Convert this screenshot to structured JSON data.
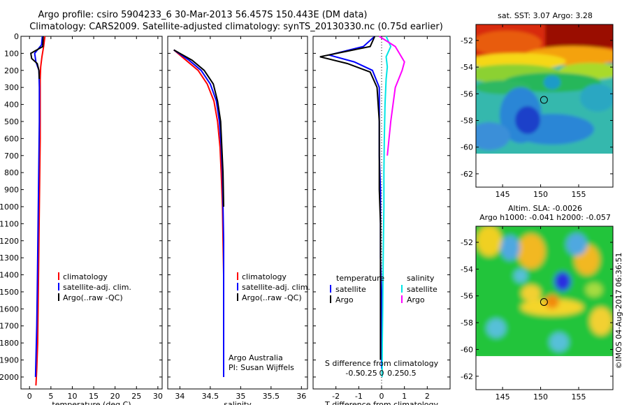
{
  "title": {
    "line1": "Argo profile: csiro 5904233_6 30-Mar-2013 56.457S 150.443E (DM data)",
    "line2": "Climatology: CARS2009. Satellite-adjusted climatology: synTS_20130330.nc (0.75d earlier)"
  },
  "credit": "©IMOS 04-Aug-2017 06:36:51",
  "colors": {
    "climatology": "#ff0000",
    "satellite": "#0000ff",
    "argo": "#000000",
    "sal_satellite": "#00e5e5",
    "sal_argo": "#ff00ff"
  },
  "chart_data": [
    {
      "id": "temperature",
      "type": "line",
      "xlabel": "temperature (deg C)",
      "ylabel": "",
      "xlim": [
        -2,
        31
      ],
      "ylim": [
        0,
        2070
      ],
      "xticks": [
        0,
        5,
        10,
        15,
        20,
        25,
        30
      ],
      "yticks": [
        0,
        100,
        200,
        300,
        400,
        500,
        600,
        700,
        800,
        900,
        1000,
        1100,
        1200,
        1300,
        1400,
        1500,
        1600,
        1700,
        1800,
        1900,
        2000
      ],
      "legend": [
        "climatology",
        "satellite-adj. clim.",
        "Argo(..raw -QC)"
      ],
      "series": [
        {
          "name": "climatology",
          "color": "#ff0000",
          "x": [
            3.6,
            3.3,
            2.9,
            2.6,
            2.5,
            2.5,
            2.5,
            2.4,
            2.3,
            2.2,
            2.1,
            2.0,
            1.9,
            1.7,
            1.5
          ],
          "y": [
            0,
            60,
            120,
            180,
            250,
            400,
            600,
            800,
            1000,
            1200,
            1400,
            1600,
            1800,
            1950,
            2050
          ]
        },
        {
          "name": "satellite-adj. clim.",
          "color": "#0000ff",
          "x": [
            3.0,
            2.8,
            1.2,
            1.5,
            2.2,
            2.3,
            2.3,
            2.2,
            2.1,
            2.0,
            1.9,
            1.8,
            1.7,
            1.5,
            1.4
          ],
          "y": [
            0,
            50,
            100,
            150,
            200,
            300,
            500,
            700,
            900,
            1100,
            1300,
            1500,
            1700,
            1900,
            2000
          ]
        },
        {
          "name": "Argo(..raw -QC)",
          "color": "#000000",
          "x": [
            3.2,
            3.1,
            0.3,
            0.5,
            1.8,
            2.2,
            2.3
          ],
          "y": [
            0,
            60,
            100,
            130,
            160,
            200,
            250
          ]
        }
      ],
      "legend_text": "Argo(..raw -QC)"
    },
    {
      "id": "salinity",
      "type": "line",
      "xlabel": "salinity",
      "ylabel": "",
      "xlim": [
        33.8,
        36.1
      ],
      "ylim": [
        0,
        2070
      ],
      "xticks": [
        34,
        34.5,
        35,
        35.5,
        36
      ],
      "xtick_labels": [
        "34",
        "34.5",
        "35",
        "35.5",
        "36"
      ],
      "legend": [
        "climatology",
        "satellite-adj. clim.",
        "Argo(..raw -QC)"
      ],
      "annotation": [
        "Argo Australia",
        "PI: Susan Wijffels"
      ],
      "series": [
        {
          "name": "climatology",
          "color": "#ff0000",
          "x": [
            33.9,
            34.1,
            34.3,
            34.45,
            34.56,
            34.62,
            34.66,
            34.68,
            34.7,
            34.71,
            34.72,
            34.72,
            34.72,
            34.72
          ],
          "y": [
            80,
            140,
            200,
            280,
            380,
            500,
            650,
            800,
            1000,
            1200,
            1400,
            1600,
            1800,
            2000
          ]
        },
        {
          "name": "satellite-adj. clim.",
          "color": "#0000ff",
          "x": [
            33.9,
            34.15,
            34.35,
            34.5,
            34.6,
            34.65,
            34.68,
            34.7,
            34.71,
            34.72,
            34.72,
            34.72,
            34.72
          ],
          "y": [
            80,
            140,
            200,
            280,
            380,
            500,
            650,
            800,
            1000,
            1200,
            1400,
            1600,
            2000
          ]
        },
        {
          "name": "Argo(..raw -QC)",
          "color": "#000000",
          "x": [
            33.9,
            34.2,
            34.4,
            34.55,
            34.62,
            34.67,
            34.69,
            34.71,
            34.72
          ],
          "y": [
            80,
            140,
            200,
            280,
            380,
            500,
            650,
            800,
            1000
          ]
        }
      ]
    },
    {
      "id": "differences",
      "type": "line",
      "xlabel": "T difference from climatology",
      "xlabel_top": "S difference from climatology",
      "xlim": [
        -3,
        3
      ],
      "ylim": [
        0,
        2070
      ],
      "xticks": [
        -2,
        -1,
        0,
        1,
        2
      ],
      "xtick_labels": [
        "-2",
        "-1",
        "0",
        "1",
        "2"
      ],
      "sticks": [
        -0.5,
        -0.25,
        0,
        0.25,
        0.5
      ],
      "stick_labels": [
        "-0.5",
        "-0.25",
        "0",
        "0.25",
        "0.5"
      ],
      "legend_headers": [
        "temperature",
        "salinity"
      ],
      "legend": [
        "satellite",
        "Argo",
        "satellite",
        "Argo"
      ],
      "series": [
        {
          "name": "temperature satellite",
          "color": "#0000ff",
          "x": [
            -0.3,
            -0.8,
            -2.3,
            -1.2,
            -0.4,
            -0.1,
            -0.1,
            -0.1,
            -0.05,
            -0.05,
            -0.05,
            0,
            0,
            0
          ],
          "y": [
            0,
            60,
            110,
            150,
            200,
            300,
            500,
            700,
            900,
            1100,
            1300,
            1500,
            1700,
            1950
          ]
        },
        {
          "name": "temperature Argo",
          "color": "#000000",
          "x": [
            -0.3,
            -0.5,
            -2.7,
            -1.5,
            -0.5,
            -0.2,
            -0.1,
            -0.1,
            -0.1,
            -0.05,
            -0.05,
            -0.05,
            -0.05
          ],
          "y": [
            0,
            60,
            120,
            160,
            210,
            300,
            500,
            700,
            900,
            1100,
            1300,
            1500,
            1900
          ]
        },
        {
          "name": "salinity satellite",
          "color": "#00e5e5",
          "x": [
            0.2,
            0.4,
            0.2,
            0.25,
            0.2,
            0.15,
            0.12,
            0.1,
            0.1,
            0.08,
            0.06,
            0.05,
            0.03,
            0.02
          ],
          "y": [
            0,
            60,
            120,
            180,
            250,
            400,
            600,
            800,
            1000,
            1200,
            1400,
            1600,
            1800,
            2000
          ]
        },
        {
          "name": "salinity Argo",
          "color": "#ff00ff",
          "x": [
            -0.1,
            0.6,
            1.0,
            0.9,
            0.6,
            0.4,
            0.25
          ],
          "y": [
            0,
            60,
            150,
            200,
            300,
            500,
            700
          ]
        }
      ]
    }
  ],
  "maps": [
    {
      "id": "sst",
      "title": "sat. SST: 3.07 Argo: 3.28",
      "xlim": [
        141.5,
        159.5
      ],
      "ylim": [
        -63,
        -50.8
      ],
      "xticks": [
        145,
        150,
        155
      ],
      "yticks": [
        -52,
        -54,
        -56,
        -58,
        -60,
        -62
      ],
      "ytick_labels": [
        "-52",
        "-54",
        "-56",
        "-58",
        "-60",
        "-62"
      ],
      "marker": [
        150.443,
        -56.457
      ],
      "data_bottom": -60
    },
    {
      "id": "sla",
      "title_line1": "Altim. SLA: -0.0026",
      "title_line2": "Argo h1000: -0.041 h2000: -0.057",
      "xlim": [
        141.5,
        159.5
      ],
      "ylim": [
        -63,
        -50.8
      ],
      "xticks": [
        145,
        150,
        155
      ],
      "yticks": [
        -52,
        -54,
        -56,
        -58,
        -60,
        -62
      ],
      "ytick_labels": [
        "-52",
        "-54",
        "-56",
        "-58",
        "-60",
        "-62"
      ],
      "marker": [
        150.443,
        -56.457
      ],
      "data_bottom": -60
    }
  ]
}
